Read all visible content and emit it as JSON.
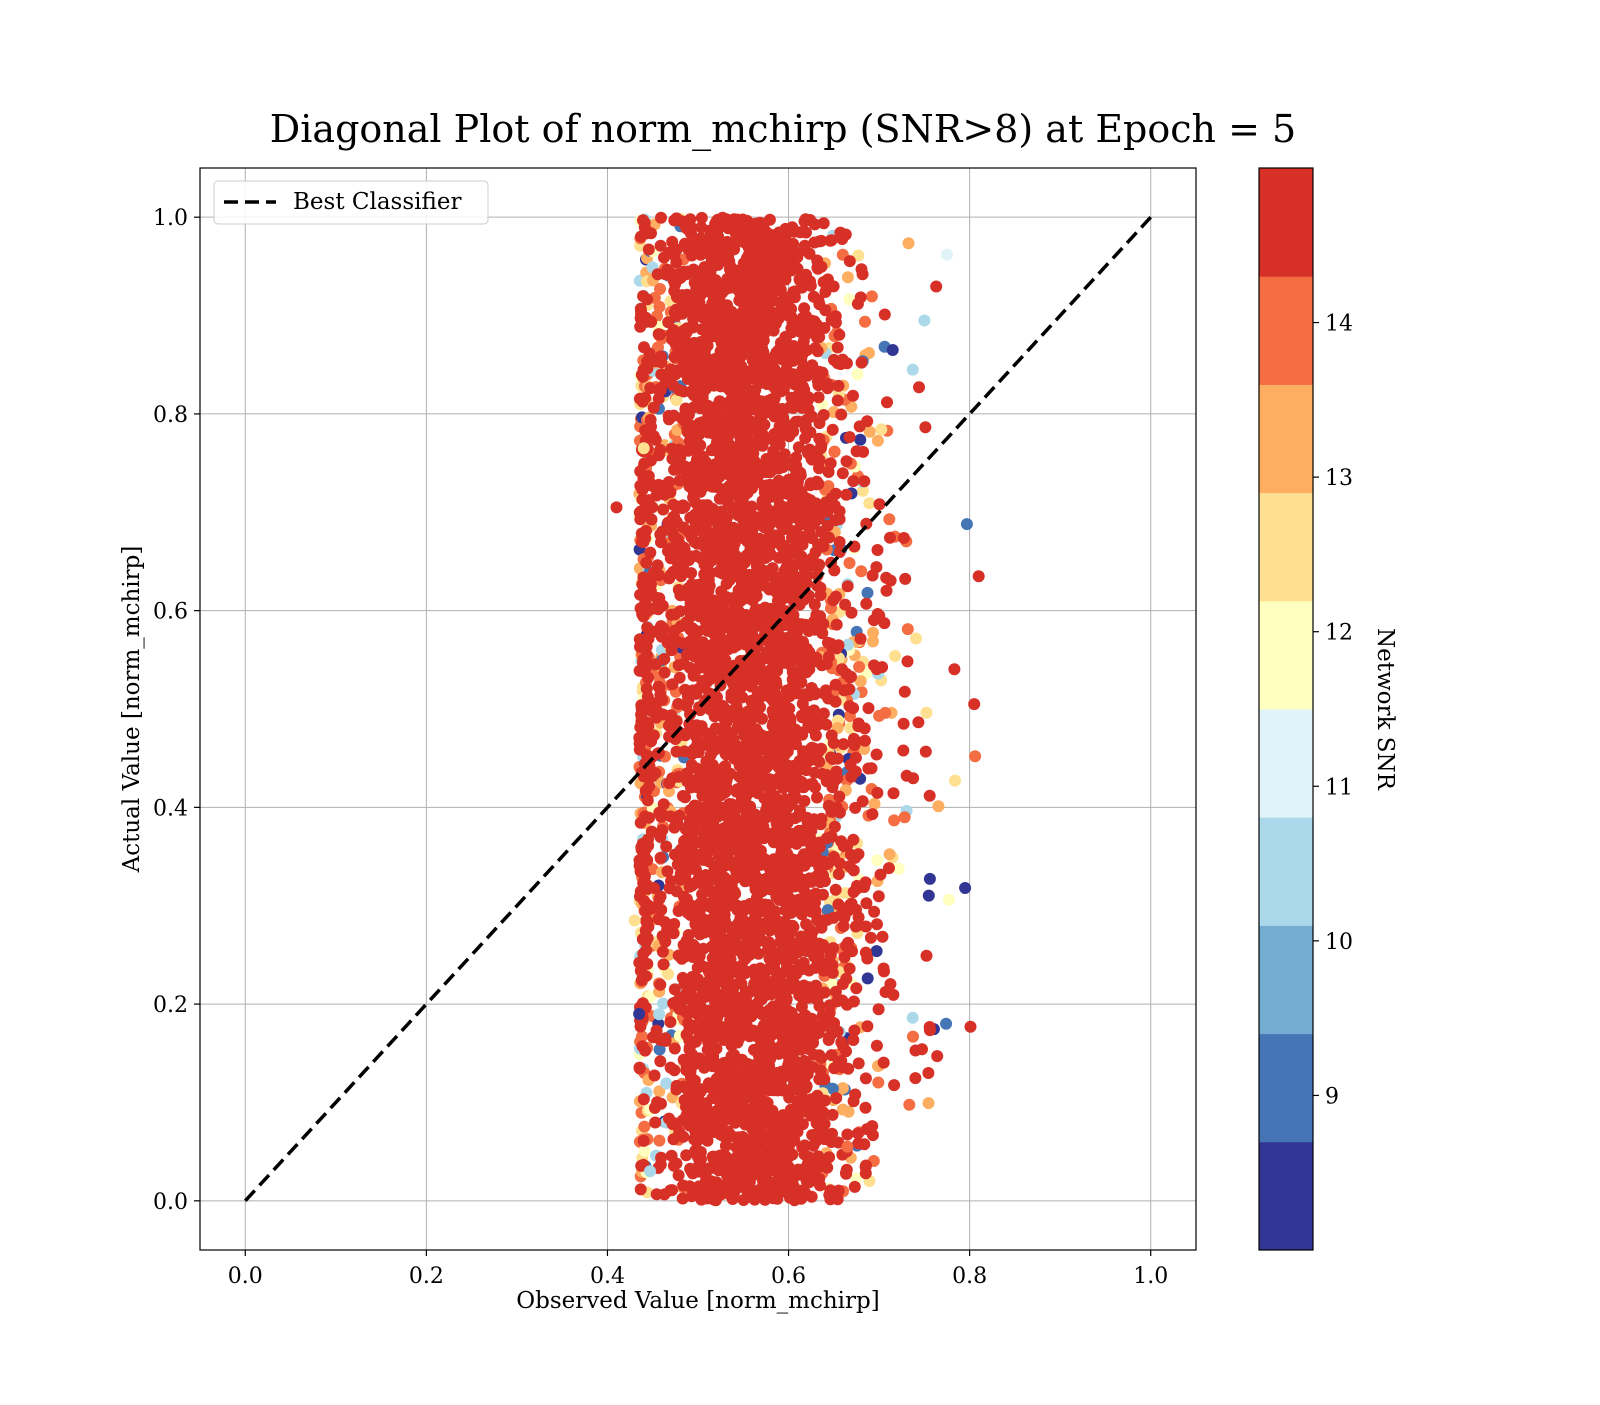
{
  "chart_data": {
    "type": "scatter",
    "title": "Diagonal Plot of norm_mchirp (SNR>8) at Epoch = 5",
    "xlabel": "Observed Value [norm_mchirp]",
    "ylabel": "Actual Value [norm_mchirp]",
    "xlim": [
      -0.05,
      1.05
    ],
    "ylim": [
      -0.05,
      1.05
    ],
    "xticks": [
      0.0,
      0.2,
      0.4,
      0.6,
      0.8,
      1.0
    ],
    "yticks": [
      0.0,
      0.2,
      0.4,
      0.6,
      0.8,
      1.0
    ],
    "xtick_labels": [
      "0.0",
      "0.2",
      "0.4",
      "0.6",
      "0.8",
      "1.0"
    ],
    "ytick_labels": [
      "0.0",
      "0.2",
      "0.4",
      "0.6",
      "0.8",
      "1.0"
    ],
    "grid": true,
    "legend": {
      "position": "top-left",
      "entries": [
        "Best Classifier"
      ]
    },
    "reference_line": {
      "name": "Best Classifier",
      "x": [
        0.0,
        1.0
      ],
      "y": [
        0.0,
        1.0
      ],
      "style": "dashed",
      "color": "#000000"
    },
    "scatter": {
      "description_count": "dense cloud of several thousand points",
      "x_core_range": [
        0.46,
        0.65
      ],
      "x_full_range": [
        0.41,
        0.81
      ],
      "y_range": [
        0.0,
        1.0
      ],
      "dominant_color_value": 14.5,
      "sample_outliers": [
        {
          "x": 0.41,
          "y": 0.705,
          "snr": 14.5
        },
        {
          "x": 0.81,
          "y": 0.635,
          "snr": 14.5
        },
        {
          "x": 0.805,
          "y": 0.505,
          "snr": 14.5
        },
        {
          "x": 0.806,
          "y": 0.452,
          "snr": 13.8
        },
        {
          "x": 0.801,
          "y": 0.177,
          "snr": 14.5
        },
        {
          "x": 0.795,
          "y": 0.318,
          "snr": 8.2
        },
        {
          "x": 0.797,
          "y": 0.688,
          "snr": 9.3
        },
        {
          "x": 0.775,
          "y": 0.962,
          "snr": 11.2
        },
        {
          "x": 0.774,
          "y": 0.18,
          "snr": 9.3
        },
        {
          "x": 0.75,
          "y": 0.895,
          "snr": 10.5
        },
        {
          "x": 0.715,
          "y": 0.865,
          "snr": 8.2
        },
        {
          "x": 0.665,
          "y": 0.055,
          "snr": 13.8
        },
        {
          "x": 0.435,
          "y": 0.19,
          "snr": 8.2
        },
        {
          "x": 0.43,
          "y": 0.285,
          "snr": 12.6
        },
        {
          "x": 0.44,
          "y": 0.765,
          "snr": 12.6
        },
        {
          "x": 0.447,
          "y": 0.03,
          "snr": 10.5
        }
      ]
    },
    "colorbar": {
      "label": "Network SNR",
      "range": [
        8.0,
        15.0
      ],
      "bounds": [
        8.0,
        8.7,
        9.4,
        10.1,
        10.8,
        11.5,
        12.2,
        12.9,
        13.6,
        14.3,
        15.0
      ],
      "colors": [
        "#313695",
        "#4575b4",
        "#74add1",
        "#abd9e9",
        "#e0f3f8",
        "#ffffbf",
        "#fee090",
        "#fdae61",
        "#f46d43",
        "#d73027",
        "#a50026"
      ],
      "ticks": [
        9,
        10,
        11,
        12,
        13,
        14
      ],
      "tick_labels": [
        "9",
        "10",
        "11",
        "12",
        "13",
        "14"
      ]
    }
  }
}
